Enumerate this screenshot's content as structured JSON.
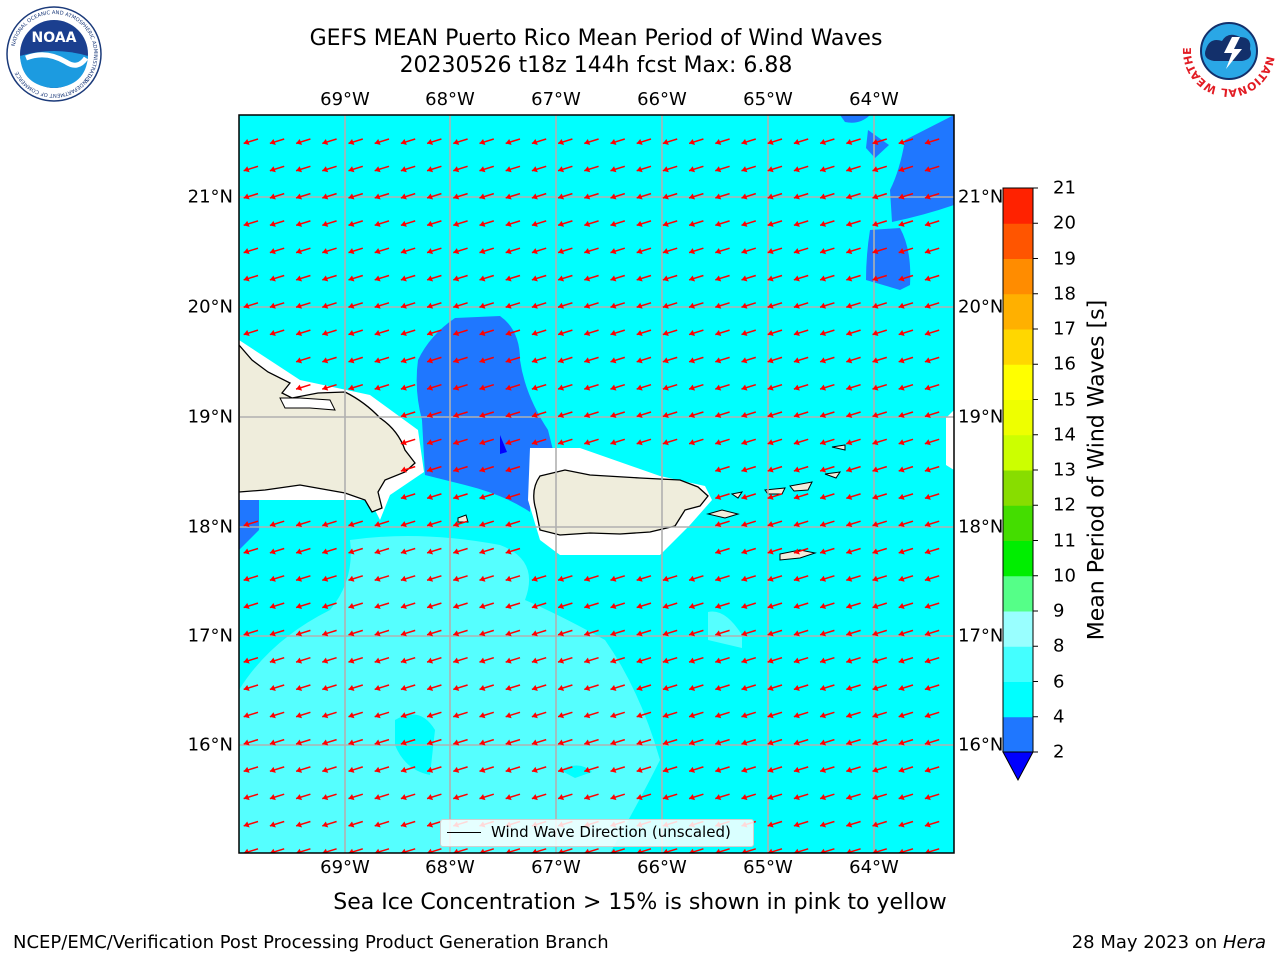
{
  "title_line1": "GEFS MEAN Puerto Rico Mean Period of Wind Waves",
  "title_line2": "20230526 t18z 144h fcst   Max: 6.88",
  "logos": {
    "noaa_text": "NOAA",
    "noaa_ring_text": "NATIONAL OCEANIC AND ATMOSPHERIC ADMINISTRATION",
    "noaa_ring_text_bottom": "U.S. DEPARTMENT OF COMMERCE",
    "nws_ring_text": "NATIONAL WEATHER SERVICE"
  },
  "lon_labels": [
    "69°W",
    "68°W",
    "67°W",
    "66°W",
    "65°W",
    "64°W"
  ],
  "lat_labels": [
    "21°N",
    "20°N",
    "19°N",
    "18°N",
    "17°N",
    "16°N"
  ],
  "colorbar": {
    "title": "Mean Period of Wind Waves [s]",
    "ticks": [
      "2",
      "4",
      "6",
      "8",
      "9",
      "10",
      "11",
      "12",
      "13",
      "14",
      "15",
      "16",
      "17",
      "18",
      "19",
      "20",
      "21"
    ],
    "colors": [
      "#1f77ff",
      "#00ffff",
      "#44ffff",
      "#99ffff",
      "#55ff88",
      "#00ee00",
      "#44dd00",
      "#88dd00",
      "#ccff00",
      "#eeff00",
      "#ffff00",
      "#ffd700",
      "#ffb000",
      "#ff8c00",
      "#ff5500",
      "#ff2200",
      "#ff0000"
    ],
    "under_color": "#0000ff"
  },
  "legend_label": "Wind Wave Direction (unscaled)",
  "caption": "Sea Ice Concentration > 15% is shown in pink to yellow",
  "footer_left": "NCEP/EMC/Verification Post Processing Product Generation Branch",
  "footer_right_date": "28 May 2023 on ",
  "footer_right_host": "Hera",
  "colors": {
    "ocean_cyan": "#00ffff",
    "light_cyan": "#55ffff",
    "blue_fill": "#1f77ff",
    "land": "#efeddc",
    "arrow": "#ff0000",
    "grid": "#b0b0b0"
  }
}
